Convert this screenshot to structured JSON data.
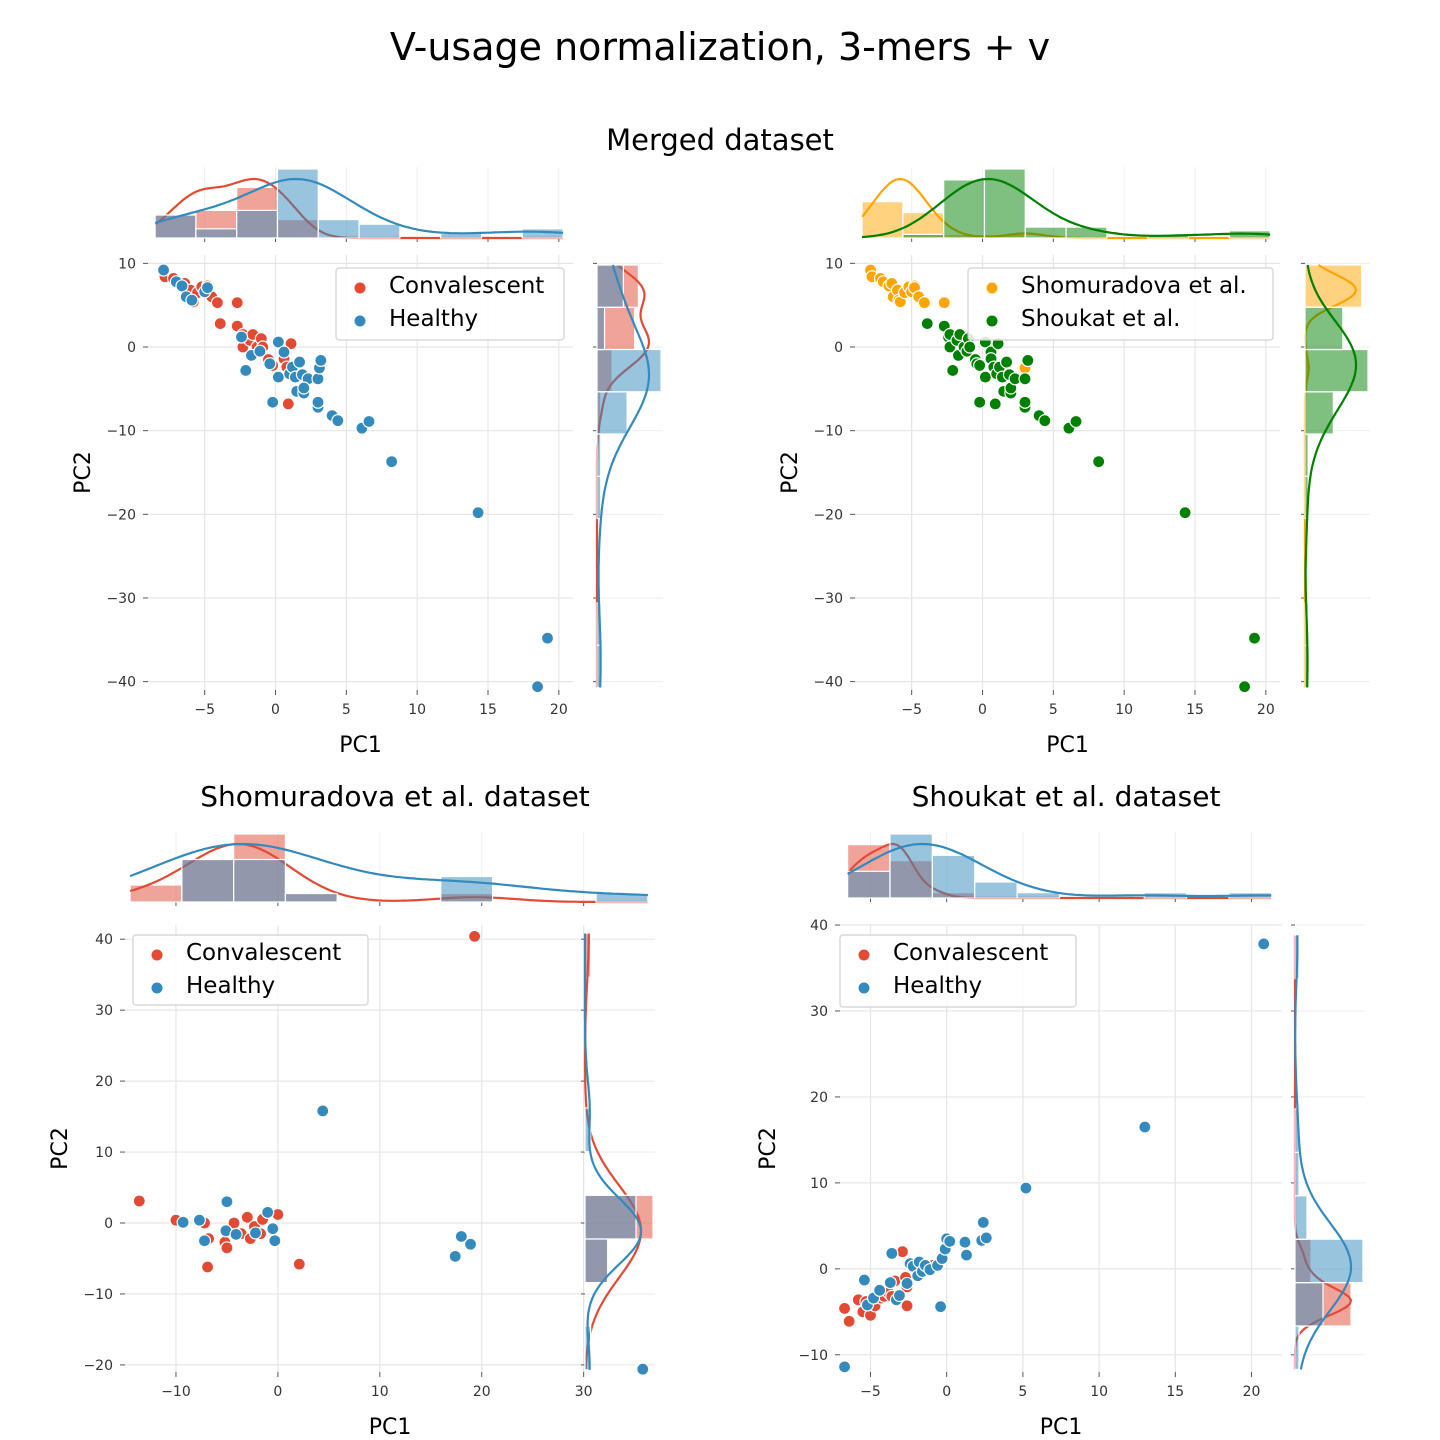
{
  "figure": {
    "title": "V-usage normalization, 3-mers + v",
    "subtitle": "Merged dataset"
  },
  "colors": {
    "Convalescent": "#e24a33",
    "Healthy": "#348abd",
    "Shomuradova et al.": "#ffa500",
    "Shoukat et al.": "#008000"
  },
  "chart_data": [
    {
      "type": "scatter",
      "title": "",
      "xlabel": "PC1",
      "ylabel": "PC2",
      "xlim": [
        -9,
        21
      ],
      "ylim": [
        -41,
        11
      ],
      "xticks": [
        -5,
        0,
        5,
        10,
        15,
        20
      ],
      "yticks": [
        -40,
        -30,
        -20,
        -10,
        0,
        10
      ],
      "grid": true,
      "legend": "top-right",
      "marginals": "histogram+kde",
      "series": [
        {
          "name": "Convalescent",
          "points": [
            [
              -7.8,
              8.4
            ],
            [
              -7.2,
              8.2
            ],
            [
              -6.4,
              7.6
            ],
            [
              -6.0,
              6.8
            ],
            [
              -5.8,
              5.4
            ],
            [
              -5.5,
              6.5
            ],
            [
              -5.2,
              7.2
            ],
            [
              -4.8,
              7.3
            ],
            [
              -4.5,
              6.0
            ],
            [
              -4.1,
              5.3
            ],
            [
              -3.9,
              2.8
            ],
            [
              -2.7,
              5.3
            ],
            [
              -2.7,
              2.5
            ],
            [
              -2.3,
              1.5
            ],
            [
              -2.3,
              0.0
            ],
            [
              -1.8,
              0.8
            ],
            [
              -1.6,
              1.5
            ],
            [
              -1.3,
              0.0
            ],
            [
              -1.0,
              1.0
            ],
            [
              -0.9,
              0.0
            ],
            [
              -0.5,
              -1.5
            ],
            [
              -0.2,
              -2.2
            ],
            [
              0.6,
              -1.4
            ],
            [
              0.8,
              -2.4
            ],
            [
              0.9,
              -6.8
            ],
            [
              1.1,
              0.4
            ]
          ]
        },
        {
          "name": "Healthy",
          "points": [
            [
              -7.9,
              9.2
            ],
            [
              -7.0,
              7.8
            ],
            [
              -6.6,
              7.3
            ],
            [
              -6.3,
              6.0
            ],
            [
              -5.9,
              5.6
            ],
            [
              -5.0,
              6.6
            ],
            [
              -4.8,
              7.1
            ],
            [
              -2.4,
              1.2
            ],
            [
              -2.1,
              -2.8
            ],
            [
              -1.7,
              -1.0
            ],
            [
              -1.1,
              -0.5
            ],
            [
              -0.4,
              -2.0
            ],
            [
              -0.2,
              -6.6
            ],
            [
              0.2,
              -3.6
            ],
            [
              0.2,
              0.6
            ],
            [
              0.6,
              -0.6
            ],
            [
              1.0,
              -3.2
            ],
            [
              1.2,
              -2.4
            ],
            [
              1.4,
              -3.6
            ],
            [
              1.5,
              -5.3
            ],
            [
              1.7,
              -1.8
            ],
            [
              1.9,
              -3.3
            ],
            [
              2.0,
              -5.5
            ],
            [
              2.3,
              -3.8
            ],
            [
              2.0,
              -4.9
            ],
            [
              3.0,
              -7.2
            ],
            [
              3.0,
              -6.6
            ],
            [
              3.0,
              -3.8
            ],
            [
              3.1,
              -2.5
            ],
            [
              3.2,
              -1.6
            ],
            [
              4.0,
              -8.2
            ],
            [
              4.4,
              -8.8
            ],
            [
              6.1,
              -9.7
            ],
            [
              6.6,
              -8.9
            ],
            [
              8.2,
              -13.7
            ],
            [
              14.3,
              -19.8
            ],
            [
              18.5,
              -40.6
            ],
            [
              19.2,
              -34.8
            ]
          ]
        }
      ]
    },
    {
      "type": "scatter",
      "title": "",
      "xlabel": "PC1",
      "ylabel": "PC2",
      "xlim": [
        -9,
        21
      ],
      "ylim": [
        -41,
        11
      ],
      "xticks": [
        -5,
        0,
        5,
        10,
        15,
        20
      ],
      "yticks": [
        -40,
        -30,
        -20,
        -10,
        0,
        10
      ],
      "grid": true,
      "legend": "top-right",
      "marginals": "histogram+kde",
      "series": [
        {
          "name": "Shomuradova et al.",
          "points": [
            [
              -7.9,
              9.2
            ],
            [
              -7.8,
              8.4
            ],
            [
              -7.2,
              8.2
            ],
            [
              -7.0,
              7.8
            ],
            [
              -6.6,
              7.3
            ],
            [
              -6.4,
              7.6
            ],
            [
              -6.3,
              6.0
            ],
            [
              -6.0,
              6.8
            ],
            [
              -5.9,
              5.6
            ],
            [
              -5.8,
              5.4
            ],
            [
              -5.5,
              6.5
            ],
            [
              -5.2,
              7.2
            ],
            [
              -5.0,
              6.6
            ],
            [
              -4.8,
              7.3
            ],
            [
              -4.8,
              7.1
            ],
            [
              -4.5,
              6.0
            ],
            [
              -4.1,
              5.3
            ],
            [
              -2.7,
              5.3
            ],
            [
              3.0,
              -2.5
            ]
          ]
        },
        {
          "name": "Shoukat et al.",
          "points": [
            [
              -3.9,
              2.8
            ],
            [
              -2.7,
              2.5
            ],
            [
              -2.4,
              1.2
            ],
            [
              -2.3,
              1.5
            ],
            [
              -2.3,
              0.0
            ],
            [
              -2.1,
              -2.8
            ],
            [
              -1.8,
              0.8
            ],
            [
              -1.7,
              -1.0
            ],
            [
              -1.6,
              1.5
            ],
            [
              -1.3,
              0.0
            ],
            [
              -1.1,
              -0.5
            ],
            [
              -1.0,
              1.0
            ],
            [
              -0.9,
              0.0
            ],
            [
              -0.5,
              -1.5
            ],
            [
              -0.4,
              -2.0
            ],
            [
              -0.2,
              -2.2
            ],
            [
              -0.2,
              -6.6
            ],
            [
              0.2,
              -3.6
            ],
            [
              0.2,
              0.6
            ],
            [
              0.6,
              -0.6
            ],
            [
              0.6,
              -1.4
            ],
            [
              0.8,
              -2.4
            ],
            [
              0.9,
              -6.8
            ],
            [
              1.0,
              -3.2
            ],
            [
              1.1,
              0.4
            ],
            [
              1.2,
              -2.4
            ],
            [
              1.4,
              -3.6
            ],
            [
              1.5,
              -5.3
            ],
            [
              1.7,
              -1.8
            ],
            [
              1.9,
              -3.3
            ],
            [
              2.0,
              -5.5
            ],
            [
              2.0,
              -4.9
            ],
            [
              2.3,
              -3.8
            ],
            [
              3.0,
              -7.2
            ],
            [
              3.0,
              -6.6
            ],
            [
              3.0,
              -3.8
            ],
            [
              3.2,
              -1.6
            ],
            [
              4.0,
              -8.2
            ],
            [
              4.4,
              -8.8
            ],
            [
              6.1,
              -9.7
            ],
            [
              6.6,
              -8.9
            ],
            [
              8.2,
              -13.7
            ],
            [
              14.3,
              -19.8
            ],
            [
              18.5,
              -40.6
            ],
            [
              19.2,
              -34.8
            ]
          ]
        }
      ]
    },
    {
      "type": "scatter",
      "title": "Shomuradova et al. dataset",
      "xlabel": "PC1",
      "ylabel": "PC2",
      "xlim": [
        -15,
        37
      ],
      "ylim": [
        -21,
        42
      ],
      "xticks": [
        -10,
        0,
        10,
        20,
        30
      ],
      "yticks": [
        -20,
        -10,
        0,
        10,
        20,
        30,
        40
      ],
      "grid": true,
      "legend": "top-left",
      "marginals": "histogram+kde",
      "series": [
        {
          "name": "Convalescent",
          "points": [
            [
              -13.6,
              3.1
            ],
            [
              -10.0,
              0.4
            ],
            [
              -7.2,
              0.0
            ],
            [
              -6.8,
              -2.2
            ],
            [
              -6.9,
              -6.2
            ],
            [
              -5.2,
              -2.7
            ],
            [
              -5.0,
              -3.5
            ],
            [
              -4.3,
              0.0
            ],
            [
              -3.6,
              -1.5
            ],
            [
              -3.0,
              0.8
            ],
            [
              -2.7,
              -2.2
            ],
            [
              -2.3,
              -0.5
            ],
            [
              -1.7,
              -1.5
            ],
            [
              -1.5,
              0.5
            ],
            [
              0.0,
              1.2
            ],
            [
              2.1,
              -5.8
            ],
            [
              19.3,
              40.4
            ]
          ]
        },
        {
          "name": "Healthy",
          "points": [
            [
              -9.3,
              0.1
            ],
            [
              -7.7,
              0.4
            ],
            [
              -7.2,
              -2.5
            ],
            [
              -5.1,
              -1.1
            ],
            [
              -5.0,
              3.0
            ],
            [
              -4.1,
              -1.6
            ],
            [
              -2.2,
              -1.4
            ],
            [
              -1.0,
              1.5
            ],
            [
              -0.5,
              -0.8
            ],
            [
              -0.3,
              -2.5
            ],
            [
              4.4,
              15.8
            ],
            [
              17.4,
              -4.7
            ],
            [
              18.0,
              -1.9
            ],
            [
              18.9,
              -3.0
            ],
            [
              35.8,
              -20.6
            ]
          ]
        }
      ]
    },
    {
      "type": "scatter",
      "title": "Shoukat et al. dataset",
      "xlabel": "PC1",
      "ylabel": "PC2",
      "xlim": [
        -7,
        22
      ],
      "ylim": [
        -12,
        40
      ],
      "xticks": [
        -5,
        0,
        5,
        10,
        15,
        20
      ],
      "yticks": [
        -10,
        0,
        10,
        20,
        30,
        40
      ],
      "grid": true,
      "legend": "top-left",
      "marginals": "histogram+kde",
      "series": [
        {
          "name": "Convalescent",
          "points": [
            [
              -6.7,
              -4.6
            ],
            [
              -6.4,
              -6.1
            ],
            [
              -5.8,
              -3.6
            ],
            [
              -5.5,
              -5.0
            ],
            [
              -5.3,
              -3.8
            ],
            [
              -5.0,
              -5.4
            ],
            [
              -4.7,
              -4.3
            ],
            [
              -4.3,
              -3.4
            ],
            [
              -4.1,
              -3.2
            ],
            [
              -3.8,
              -2.8
            ],
            [
              -3.6,
              -3.2
            ],
            [
              -3.4,
              -1.4
            ],
            [
              -3.1,
              -3.6
            ],
            [
              -2.9,
              2.0
            ],
            [
              -2.7,
              -1.0
            ],
            [
              -2.6,
              -4.3
            ],
            [
              -2.6,
              -2.1
            ],
            [
              -0.9,
              0.4
            ]
          ]
        },
        {
          "name": "Healthy",
          "points": [
            [
              -6.7,
              -11.4
            ],
            [
              -5.4,
              -1.3
            ],
            [
              -5.2,
              -4.2
            ],
            [
              -4.8,
              -3.4
            ],
            [
              -4.4,
              -2.5
            ],
            [
              -3.7,
              -1.6
            ],
            [
              -3.6,
              1.8
            ],
            [
              -3.3,
              -3.6
            ],
            [
              -3.1,
              -3.1
            ],
            [
              -2.6,
              -1.7
            ],
            [
              -2.4,
              0.6
            ],
            [
              -2.2,
              0.3
            ],
            [
              -1.9,
              -0.8
            ],
            [
              -1.8,
              0.8
            ],
            [
              -1.6,
              -0.3
            ],
            [
              -1.4,
              0.4
            ],
            [
              -1.1,
              -0.1
            ],
            [
              -0.6,
              0.4
            ],
            [
              -0.4,
              -4.4
            ],
            [
              -0.3,
              1.2
            ],
            [
              -0.1,
              2.3
            ],
            [
              0.0,
              3.5
            ],
            [
              0.2,
              3.2
            ],
            [
              1.2,
              3.1
            ],
            [
              1.3,
              1.6
            ],
            [
              2.3,
              3.3
            ],
            [
              2.4,
              5.4
            ],
            [
              2.6,
              3.6
            ],
            [
              5.2,
              9.4
            ],
            [
              13.0,
              16.5
            ],
            [
              20.8,
              37.8
            ]
          ]
        }
      ]
    }
  ]
}
